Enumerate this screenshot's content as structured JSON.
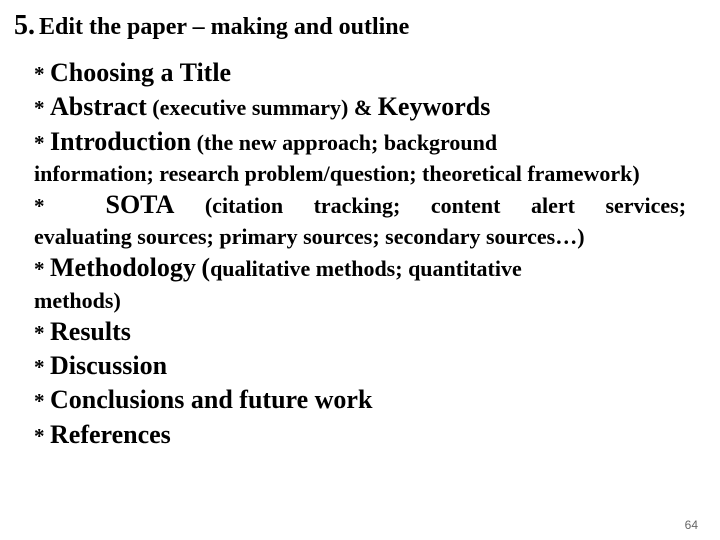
{
  "heading": {
    "number": "5.",
    "title": "Edit the paper – making and outline"
  },
  "items": {
    "choosing": "Choosing a Title",
    "abstract": "Abstract",
    "abstract_note": "(executive summary) &",
    "keywords": "Keywords",
    "introduction": "Introduction",
    "introduction_note1": "(the new approach; background",
    "introduction_note2": "information; research problem/question; theoretical framework)",
    "sota": "SOTA",
    "sota_note1": "(citation",
    "sota_note2": "tracking;",
    "sota_note3": "content",
    "sota_note4": "alert",
    "sota_note5": "services;",
    "sota_note_rest": "evaluating sources; primary sources; secondary sources…)",
    "methodology": "Methodology",
    "methodology_paren": "(",
    "methodology_note1": "qualitative methods; quantitative",
    "methodology_note2": "methods)",
    "results": "Results",
    "discussion": "Discussion",
    "conclusions": "Conclusions and future work",
    "references": "References"
  },
  "page_number": "64"
}
